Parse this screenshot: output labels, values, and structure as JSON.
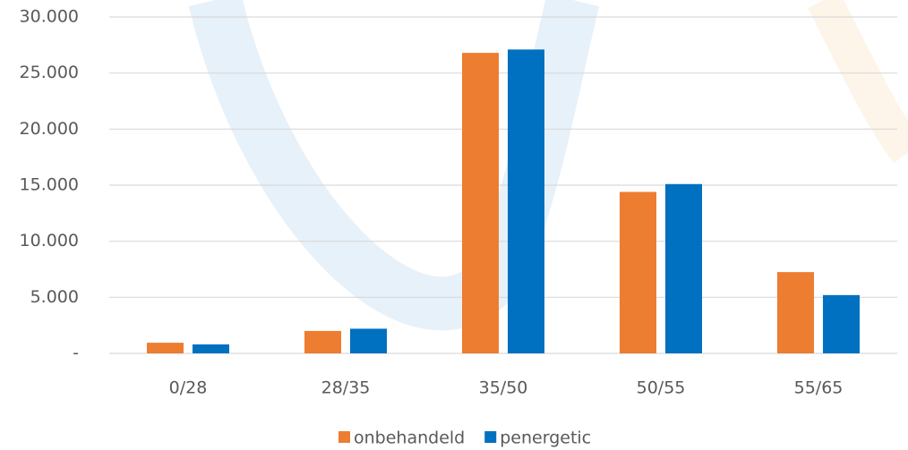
{
  "chart_data": {
    "type": "bar",
    "categories": [
      "0/28",
      "28/35",
      "35/50",
      "50/55",
      "55/65"
    ],
    "series": [
      {
        "name": "onbehandeld",
        "color": "#ed7d31",
        "values": [
          950,
          2000,
          26800,
          14400,
          7250
        ]
      },
      {
        "name": "penergetic",
        "color": "#0070c0",
        "values": [
          800,
          2200,
          27100,
          15100,
          5200
        ]
      }
    ],
    "ylim": [
      0,
      30000
    ],
    "yticks": [
      {
        "value": 0,
        "label": "-"
      },
      {
        "value": 5000,
        "label": "5.000"
      },
      {
        "value": 10000,
        "label": "10.000"
      },
      {
        "value": 15000,
        "label": "15.000"
      },
      {
        "value": 20000,
        "label": "20.000"
      },
      {
        "value": 25000,
        "label": "25.000"
      },
      {
        "value": 30000,
        "label": "30.000"
      }
    ],
    "grid": true,
    "legend": "bottom"
  }
}
